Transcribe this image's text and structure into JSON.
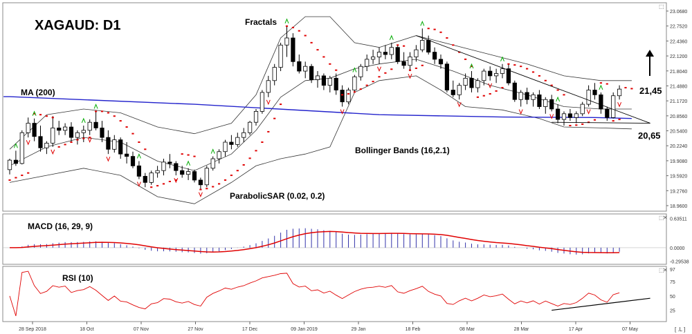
{
  "chart_data": {
    "type": "candlestick",
    "title": "XAGAUD: D1",
    "colors": {
      "bull": "#ffffff",
      "bear": "#000000",
      "outline": "#000000",
      "ma": "#2222cc",
      "bands": "#333333",
      "sar": "#e00000",
      "fractal_up": "#00aa00",
      "fractal_down": "#e00000",
      "macd_hist": "#3333aa",
      "macd_signal": "#e00000",
      "rsi": "#e00000",
      "trendline": "#000000",
      "arrow": "#000000"
    },
    "price_axis": {
      "min": 18.96,
      "max": 23.068,
      "ticks": [
        "23.0680",
        "22.7520",
        "22.4360",
        "22.1200",
        "21.8040",
        "21.4880",
        "21.1720",
        "20.8560",
        "20.5400",
        "20.2240",
        "19.9080",
        "19.5920",
        "19.2760",
        "18.9600"
      ]
    },
    "x_ticks": [
      "28 Sep 2018",
      "18 Oct",
      "07 Nov",
      "27 Nov",
      "17 Dec",
      "09 Jan 2019",
      "29 Jan",
      "18 Feb",
      "08 Mar",
      "28 Mar",
      "17 Apr",
      "07 May"
    ],
    "candles": [
      [
        19.72,
        19.95,
        19.62,
        19.92
      ],
      [
        19.92,
        20.12,
        19.8,
        19.85
      ],
      [
        19.85,
        20.55,
        19.83,
        20.5
      ],
      [
        20.5,
        20.82,
        20.4,
        20.7
      ],
      [
        20.7,
        20.8,
        20.32,
        20.42
      ],
      [
        20.42,
        20.65,
        20.1,
        20.18
      ],
      [
        20.18,
        20.32,
        20.05,
        20.28
      ],
      [
        20.28,
        20.85,
        20.2,
        20.6
      ],
      [
        20.6,
        20.75,
        20.45,
        20.55
      ],
      [
        20.55,
        20.7,
        20.45,
        20.62
      ],
      [
        20.62,
        20.72,
        20.3,
        20.4
      ],
      [
        20.4,
        20.55,
        20.25,
        20.5
      ],
      [
        20.5,
        20.65,
        20.3,
        20.55
      ],
      [
        20.55,
        20.78,
        20.45,
        20.72
      ],
      [
        20.72,
        20.95,
        20.55,
        20.6
      ],
      [
        20.6,
        20.75,
        20.3,
        20.4
      ],
      [
        20.4,
        20.55,
        20.05,
        20.15
      ],
      [
        20.15,
        20.45,
        20.08,
        20.35
      ],
      [
        20.35,
        20.4,
        19.95,
        20.05
      ],
      [
        20.05,
        20.3,
        19.85,
        20.0
      ],
      [
        20.0,
        20.1,
        19.75,
        19.8
      ],
      [
        19.8,
        19.9,
        19.52,
        19.58
      ],
      [
        19.58,
        19.65,
        19.35,
        19.45
      ],
      [
        19.45,
        19.7,
        19.4,
        19.65
      ],
      [
        19.65,
        19.8,
        19.55,
        19.7
      ],
      [
        19.7,
        19.95,
        19.6,
        19.88
      ],
      [
        19.88,
        20.05,
        19.75,
        19.85
      ],
      [
        19.85,
        19.9,
        19.6,
        19.7
      ],
      [
        19.7,
        19.8,
        19.55,
        19.62
      ],
      [
        19.62,
        19.75,
        19.5,
        19.68
      ],
      [
        19.68,
        19.72,
        19.45,
        19.5
      ],
      [
        19.5,
        19.55,
        19.3,
        19.4
      ],
      [
        19.4,
        19.8,
        19.35,
        19.75
      ],
      [
        19.75,
        20.0,
        19.7,
        19.95
      ],
      [
        19.95,
        20.15,
        19.85,
        20.1
      ],
      [
        20.1,
        20.35,
        20.0,
        20.3
      ],
      [
        20.3,
        20.45,
        20.15,
        20.25
      ],
      [
        20.25,
        20.5,
        20.2,
        20.4
      ],
      [
        20.4,
        20.6,
        20.3,
        20.5
      ],
      [
        20.5,
        20.75,
        20.45,
        20.72
      ],
      [
        20.72,
        21.0,
        20.65,
        20.95
      ],
      [
        20.95,
        21.4,
        20.9,
        21.35
      ],
      [
        21.35,
        21.7,
        21.25,
        21.6
      ],
      [
        21.6,
        21.95,
        21.5,
        21.88
      ],
      [
        21.88,
        22.4,
        21.8,
        22.35
      ],
      [
        22.35,
        22.75,
        22.1,
        22.5
      ],
      [
        22.5,
        22.6,
        21.9,
        22.0
      ],
      [
        22.0,
        22.15,
        21.75,
        21.8
      ],
      [
        21.8,
        22.0,
        21.65,
        21.9
      ],
      [
        21.9,
        21.95,
        21.55,
        21.62
      ],
      [
        21.62,
        21.8,
        21.45,
        21.7
      ],
      [
        21.7,
        21.75,
        21.4,
        21.5
      ],
      [
        21.5,
        21.7,
        21.35,
        21.65
      ],
      [
        21.65,
        21.75,
        21.3,
        21.4
      ],
      [
        21.4,
        21.5,
        21.05,
        21.15
      ],
      [
        21.15,
        21.45,
        21.1,
        21.4
      ],
      [
        21.4,
        21.72,
        21.35,
        21.68
      ],
      [
        21.68,
        21.95,
        21.6,
        21.9
      ],
      [
        21.9,
        22.15,
        21.8,
        22.05
      ],
      [
        22.05,
        22.25,
        21.95,
        22.1
      ],
      [
        22.1,
        22.3,
        21.95,
        22.2
      ],
      [
        22.2,
        22.35,
        22.05,
        22.15
      ],
      [
        22.15,
        22.4,
        22.05,
        22.3
      ],
      [
        22.3,
        22.35,
        21.95,
        22.0
      ],
      [
        22.0,
        22.2,
        21.85,
        21.92
      ],
      [
        21.92,
        22.2,
        21.8,
        22.1
      ],
      [
        22.1,
        22.35,
        22.0,
        22.25
      ],
      [
        22.25,
        22.7,
        22.2,
        22.45
      ],
      [
        22.45,
        22.55,
        22.15,
        22.2
      ],
      [
        22.2,
        22.3,
        21.95,
        22.05
      ],
      [
        22.05,
        22.15,
        21.85,
        21.95
      ],
      [
        21.95,
        22.0,
        21.35,
        21.4
      ],
      [
        21.4,
        21.6,
        21.25,
        21.3
      ],
      [
        21.3,
        21.55,
        21.2,
        21.5
      ],
      [
        21.5,
        21.75,
        21.4,
        21.65
      ],
      [
        21.65,
        21.8,
        21.35,
        21.45
      ],
      [
        21.45,
        21.65,
        21.35,
        21.6
      ],
      [
        21.6,
        21.85,
        21.5,
        21.8
      ],
      [
        21.8,
        21.9,
        21.6,
        21.7
      ],
      [
        21.7,
        21.85,
        21.55,
        21.75
      ],
      [
        21.75,
        21.95,
        21.65,
        21.85
      ],
      [
        21.85,
        21.95,
        21.5,
        21.55
      ],
      [
        21.55,
        21.6,
        21.15,
        21.2
      ],
      [
        21.2,
        21.4,
        21.05,
        21.35
      ],
      [
        21.35,
        21.45,
        21.1,
        21.2
      ],
      [
        21.2,
        21.35,
        21.05,
        21.3
      ],
      [
        21.3,
        21.4,
        21.0,
        21.05
      ],
      [
        21.05,
        21.25,
        20.9,
        21.2
      ],
      [
        21.2,
        21.3,
        20.95,
        21.0
      ],
      [
        21.0,
        21.1,
        20.7,
        20.78
      ],
      [
        20.78,
        20.95,
        20.65,
        20.9
      ],
      [
        20.9,
        21.0,
        20.75,
        20.82
      ],
      [
        20.82,
        20.95,
        20.7,
        20.9
      ],
      [
        20.9,
        21.15,
        20.85,
        21.1
      ],
      [
        21.1,
        21.5,
        21.05,
        21.4
      ],
      [
        21.4,
        21.55,
        21.2,
        21.3
      ],
      [
        21.3,
        21.35,
        20.9,
        21.0
      ],
      [
        21.0,
        21.05,
        20.75,
        20.82
      ],
      [
        20.82,
        21.35,
        20.8,
        21.28
      ],
      [
        21.28,
        21.5,
        21.2,
        21.42
      ]
    ],
    "ma200": [
      [
        0,
        21.26
      ],
      [
        30,
        21.1
      ],
      [
        60,
        20.88
      ],
      [
        80,
        20.83
      ],
      [
        95,
        20.82
      ],
      [
        101,
        20.8
      ]
    ],
    "bollinger_upper": [
      [
        0,
        20.15
      ],
      [
        6,
        20.88
      ],
      [
        12,
        21.0
      ],
      [
        18,
        20.92
      ],
      [
        24,
        20.62
      ],
      [
        30,
        20.48
      ],
      [
        36,
        20.7
      ],
      [
        40,
        21.3
      ],
      [
        44,
        22.5
      ],
      [
        48,
        22.95
      ],
      [
        52,
        22.95
      ],
      [
        56,
        22.4
      ],
      [
        60,
        22.3
      ],
      [
        66,
        22.55
      ],
      [
        72,
        22.35
      ],
      [
        78,
        22.15
      ],
      [
        84,
        21.95
      ],
      [
        90,
        21.7
      ],
      [
        96,
        21.6
      ],
      [
        101,
        21.6
      ]
    ],
    "bollinger_lower": [
      [
        0,
        19.45
      ],
      [
        6,
        19.6
      ],
      [
        12,
        19.75
      ],
      [
        18,
        19.6
      ],
      [
        24,
        19.15
      ],
      [
        30,
        19.0
      ],
      [
        36,
        19.45
      ],
      [
        40,
        19.8
      ],
      [
        44,
        19.95
      ],
      [
        48,
        20.05
      ],
      [
        52,
        20.2
      ],
      [
        56,
        21.35
      ],
      [
        60,
        21.6
      ],
      [
        66,
        21.7
      ],
      [
        70,
        21.4
      ],
      [
        74,
        21.05
      ],
      [
        80,
        20.98
      ],
      [
        86,
        20.8
      ],
      [
        90,
        20.62
      ],
      [
        96,
        20.6
      ],
      [
        101,
        20.58
      ]
    ],
    "bollinger_middle": [
      [
        0,
        19.8
      ],
      [
        6,
        20.2
      ],
      [
        12,
        20.4
      ],
      [
        18,
        20.3
      ],
      [
        24,
        19.9
      ],
      [
        30,
        19.7
      ],
      [
        36,
        20.05
      ],
      [
        40,
        20.55
      ],
      [
        44,
        21.25
      ],
      [
        48,
        21.6
      ],
      [
        52,
        21.65
      ],
      [
        56,
        21.85
      ],
      [
        60,
        21.95
      ],
      [
        66,
        22.05
      ],
      [
        72,
        21.8
      ],
      [
        78,
        21.5
      ],
      [
        84,
        21.3
      ],
      [
        90,
        21.05
      ],
      [
        96,
        21.0
      ],
      [
        101,
        21.0
      ]
    ],
    "parabolic_sar": [
      [
        0,
        19.5
      ],
      [
        1,
        19.55
      ],
      [
        2,
        19.6
      ],
      [
        3,
        19.65
      ],
      [
        4,
        20.9
      ],
      [
        5,
        20.88
      ],
      [
        6,
        20.85
      ],
      [
        7,
        20.82
      ],
      [
        8,
        20.2
      ],
      [
        9,
        20.25
      ],
      [
        10,
        20.3
      ],
      [
        11,
        20.35
      ],
      [
        12,
        20.38
      ],
      [
        13,
        20.4
      ],
      [
        14,
        20.95
      ],
      [
        15,
        20.95
      ],
      [
        16,
        20.92
      ],
      [
        17,
        20.85
      ],
      [
        18,
        20.75
      ],
      [
        19,
        20.62
      ],
      [
        20,
        20.48
      ],
      [
        21,
        20.3
      ],
      [
        22,
        20.15
      ],
      [
        23,
        19.35
      ],
      [
        24,
        19.38
      ],
      [
        25,
        19.42
      ],
      [
        26,
        19.47
      ],
      [
        27,
        19.5
      ],
      [
        28,
        20.05
      ],
      [
        29,
        20.03
      ],
      [
        30,
        20.0
      ],
      [
        31,
        19.3
      ],
      [
        32,
        19.32
      ],
      [
        33,
        19.36
      ],
      [
        34,
        19.42
      ],
      [
        35,
        19.5
      ],
      [
        36,
        19.6
      ],
      [
        37,
        19.7
      ],
      [
        38,
        19.82
      ],
      [
        39,
        19.96
      ],
      [
        40,
        20.12
      ],
      [
        41,
        20.3
      ],
      [
        42,
        20.52
      ],
      [
        43,
        20.8
      ],
      [
        44,
        21.1
      ],
      [
        45,
        22.75
      ],
      [
        46,
        22.72
      ],
      [
        47,
        22.65
      ],
      [
        48,
        22.55
      ],
      [
        49,
        22.4
      ],
      [
        50,
        22.25
      ],
      [
        51,
        22.1
      ],
      [
        52,
        21.95
      ],
      [
        53,
        21.82
      ],
      [
        54,
        21.3
      ],
      [
        55,
        21.32
      ],
      [
        56,
        21.36
      ],
      [
        57,
        21.42
      ],
      [
        58,
        21.5
      ],
      [
        59,
        21.58
      ],
      [
        60,
        21.68
      ],
      [
        61,
        21.76
      ],
      [
        62,
        21.84
      ],
      [
        63,
        22.35
      ],
      [
        64,
        22.33
      ],
      [
        65,
        21.82
      ],
      [
        66,
        21.86
      ],
      [
        67,
        21.92
      ],
      [
        68,
        22.7
      ],
      [
        69,
        22.68
      ],
      [
        70,
        22.62
      ],
      [
        71,
        22.5
      ],
      [
        72,
        22.35
      ],
      [
        73,
        22.2
      ],
      [
        74,
        22.05
      ],
      [
        75,
        21.9
      ],
      [
        76,
        21.25
      ],
      [
        77,
        21.28
      ],
      [
        78,
        21.32
      ],
      [
        79,
        21.38
      ],
      [
        80,
        21.45
      ],
      [
        81,
        21.95
      ],
      [
        82,
        21.93
      ],
      [
        83,
        21.9
      ],
      [
        84,
        21.85
      ],
      [
        85,
        21.78
      ],
      [
        86,
        21.7
      ],
      [
        87,
        21.6
      ],
      [
        88,
        21.5
      ],
      [
        89,
        21.4
      ],
      [
        90,
        21.3
      ],
      [
        91,
        20.65
      ],
      [
        92,
        20.66
      ],
      [
        93,
        20.68
      ],
      [
        94,
        20.72
      ],
      [
        95,
        20.77
      ],
      [
        96,
        21.55
      ],
      [
        97,
        21.53
      ],
      [
        98,
        20.75
      ],
      [
        99,
        20.78
      ],
      [
        100,
        21.45
      ],
      [
        101,
        21.43
      ]
    ],
    "fractals_up": [
      1,
      4,
      12,
      14,
      21,
      29,
      33,
      45,
      56,
      62,
      67,
      75,
      80,
      89,
      96
    ],
    "fractals_down": [
      3,
      7,
      13,
      16,
      21,
      27,
      31,
      42,
      54,
      60,
      65,
      73,
      78,
      83,
      88,
      94,
      99
    ],
    "trendline_resistance": [
      [
        66,
        22.55
      ],
      [
        104,
        20.7
      ]
    ],
    "support_line": [
      [
        88,
        20.72
      ],
      [
        104,
        20.7
      ]
    ],
    "annotations": {
      "fractals": "Fractals",
      "ma": "MA (200)",
      "bollinger": "Bollinger Bands (16,2.1)",
      "sar": "ParabolicSAR (0.02, 0.2)",
      "level_high": "21,45",
      "level_low": "20,65"
    },
    "macd": {
      "label": "MACD (16, 29, 9)",
      "ticks": [
        "0.63511",
        "0.0000",
        "-0.29538"
      ],
      "range": [
        -0.3,
        0.64
      ]
    },
    "rsi": {
      "label": "RSI (10)",
      "ticks": [
        "97",
        "75",
        "50",
        "25"
      ],
      "range": [
        10,
        97
      ],
      "trendline": [
        [
          88,
          25
        ],
        [
          104,
          46
        ]
      ]
    },
    "corner_icon": "⬚",
    "corner_icon_x": "✕",
    "bottom_right": "[ .L ]"
  }
}
